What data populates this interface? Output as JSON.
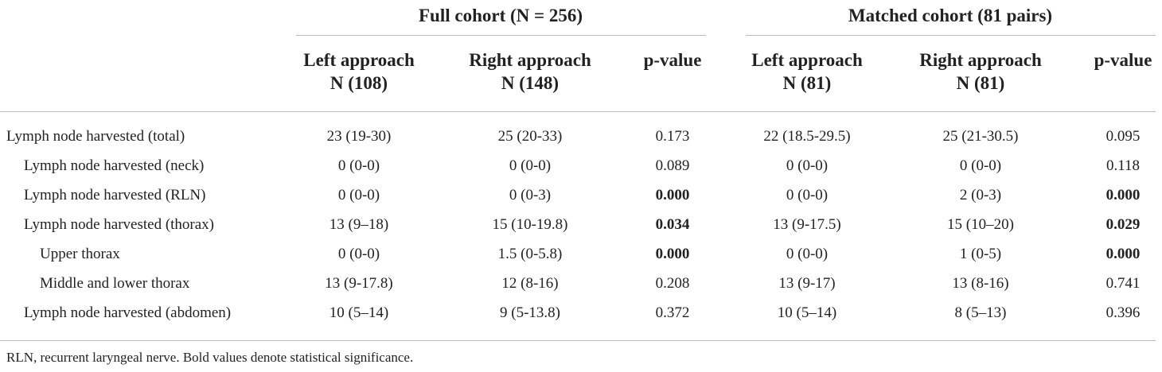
{
  "table": {
    "groups": [
      "Full cohort (N = 256)",
      "Matched cohort (81 pairs)"
    ],
    "columns": [
      {
        "title": "Left approach",
        "n": "N (108)"
      },
      {
        "title": "Right approach",
        "n": "N (148)"
      },
      {
        "title": "p-value"
      },
      {
        "title": "Left approach",
        "n": "N (81)"
      },
      {
        "title": "Right approach",
        "n": "N (81)"
      },
      {
        "title": "p-value"
      }
    ],
    "rows": [
      [
        "Lymph node harvested (total)",
        "23 (19-30)",
        "25 (20-33)",
        "0.173",
        "22 (18.5-29.5)",
        "25 (21-30.5)",
        "0.095"
      ],
      [
        "Lymph node harvested (neck)",
        "0 (0-0)",
        "0 (0-0)",
        "0.089",
        "0 (0-0)",
        "0 (0-0)",
        "0.118"
      ],
      [
        "Lymph node harvested (RLN)",
        "0 (0-0)",
        "0 (0-3)",
        "0.000",
        "0 (0-0)",
        "2 (0-3)",
        "0.000"
      ],
      [
        "Lymph node harvested (thorax)",
        "13 (9–18)",
        "15 (10-19.8)",
        "0.034",
        "13 (9-17.5)",
        "15 (10–20)",
        "0.029"
      ],
      [
        "Upper thorax",
        "0 (0-0)",
        "1.5 (0-5.8)",
        "0.000",
        "0 (0-0)",
        "1 (0-5)",
        "0.000"
      ],
      [
        "Middle and lower thorax",
        "13 (9-17.8)",
        "12 (8-16)",
        "0.208",
        "13 (9-17)",
        "13 (8-16)",
        "0.741"
      ],
      [
        "Lymph node harvested (abdomen)",
        "10 (5–14)",
        "9 (5-13.8)",
        "0.372",
        "10 (5–14)",
        "8 (5–13)",
        "0.396"
      ]
    ],
    "footnote": "RLN, recurrent laryngeal nerve. Bold values denote statistical significance."
  }
}
